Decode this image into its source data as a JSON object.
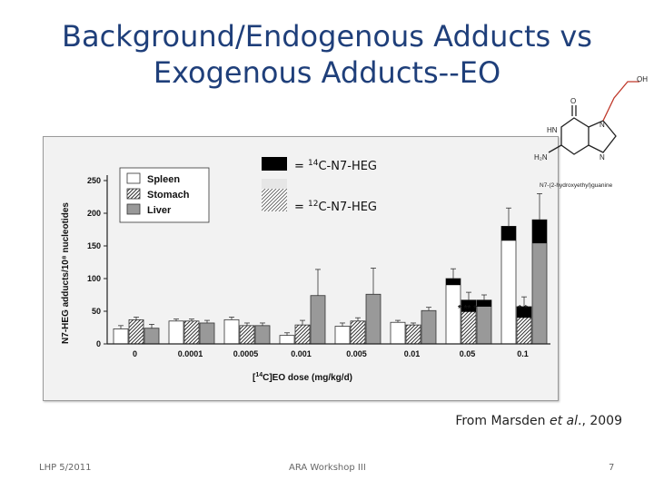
{
  "slide": {
    "title_line1": "Background/Endogenous Adducts vs",
    "title_line2": "Exogenous Adducts--EO",
    "citation_prefix": "From Marsden ",
    "citation_italic": "et al",
    "citation_suffix": "., 2009",
    "footer_left": "LHP 5/2011",
    "footer_center": "ARA Workshop III",
    "footer_right": "7"
  },
  "overlay_legend": [
    {
      "pre": "= ",
      "sup": "14",
      "post": "C-N7-HEG",
      "style": "black"
    },
    {
      "pre": "=  ",
      "sup": "12",
      "post": "C-N7-HEG",
      "style": "hatched"
    }
  ],
  "structure": {
    "oh_label": "OH",
    "o_label": "O",
    "hn_label": "HN",
    "h2n_label": "H₂N",
    "n_label": "N",
    "caption": "N7-(2-hydroxyethyl)guanine"
  },
  "chart_data": {
    "type": "bar",
    "title": "",
    "xlabel": "[14C]EO dose (mg/kg/d)",
    "ylabel": "N7-HEG adducts/10⁸ nucleotides",
    "ylim": [
      0,
      250
    ],
    "yticks": [
      0,
      50,
      100,
      150,
      200,
      250
    ],
    "categories": [
      "0",
      "0.0001",
      "0.0005",
      "0.001",
      "0.005",
      "0.01",
      "0.05",
      "0.1"
    ],
    "legend": {
      "position": "top-left",
      "entries": [
        "Spleen",
        "Stomach",
        "Liver"
      ]
    },
    "series": [
      {
        "name": "Spleen",
        "values": [
          23,
          35,
          37,
          13,
          27,
          33,
          100,
          180
        ],
        "labeled14C": [
          0,
          0,
          0,
          0,
          0,
          0,
          10,
          22
        ],
        "errors": [
          5,
          3,
          4,
          4,
          5,
          3,
          15,
          28
        ]
      },
      {
        "name": "Stomach",
        "values": [
          37,
          35,
          28,
          29,
          35,
          29,
          67,
          57
        ],
        "labeled14C": [
          0,
          0,
          0,
          0,
          0,
          0,
          18,
          17
        ],
        "errors": [
          4,
          3,
          4,
          7,
          5,
          3,
          12,
          15
        ]
      },
      {
        "name": "Liver",
        "values": [
          24,
          32,
          28,
          74,
          76,
          51,
          67,
          190
        ],
        "labeled14C": [
          0,
          0,
          0,
          0,
          0,
          0,
          10,
          36
        ],
        "errors": [
          6,
          4,
          4,
          40,
          40,
          5,
          8,
          40
        ]
      }
    ],
    "asterisks": [
      "",
      "",
      "",
      "",
      "",
      "",
      "* ** *",
      "* *"
    ]
  }
}
